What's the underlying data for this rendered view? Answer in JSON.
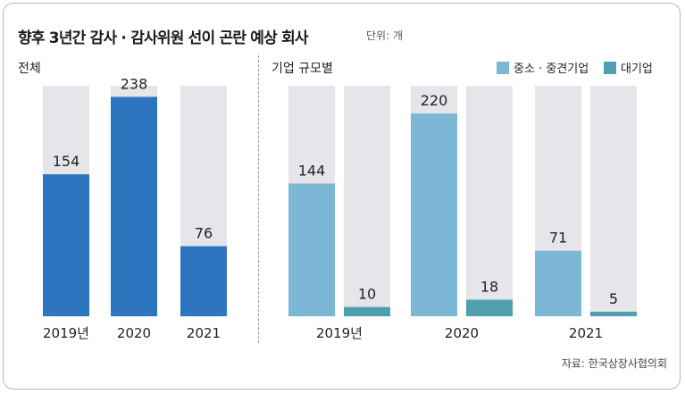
{
  "title": "향후 3년간 감사 · 감사위원 선이 곤란 예상 회사",
  "unit": "단위: 개",
  "left_panel_label": "전체",
  "right_panel_label": "기업 규모별",
  "source": "자료: 한국상장사협의회",
  "colors": {
    "total": "#2e75bf",
    "sme": "#7cb8d6",
    "large": "#4ea0b0",
    "background_bar": "#e6e6ea"
  },
  "chart_data": [
    {
      "type": "bar",
      "title": "전체",
      "categories": [
        "2019년",
        "2020",
        "2021"
      ],
      "series": [
        {
          "values": [
            154,
            238,
            76
          ]
        }
      ],
      "ylim": [
        0,
        250
      ]
    },
    {
      "type": "bar",
      "title": "기업 규모별",
      "categories": [
        "2019년",
        "2020",
        "2021"
      ],
      "legend": "top-right",
      "series": [
        {
          "name": "중소 · 중견기업",
          "values": [
            144,
            220,
            71
          ]
        },
        {
          "name": "대기업",
          "values": [
            10,
            18,
            5
          ]
        }
      ],
      "ylim": [
        0,
        250
      ]
    }
  ]
}
